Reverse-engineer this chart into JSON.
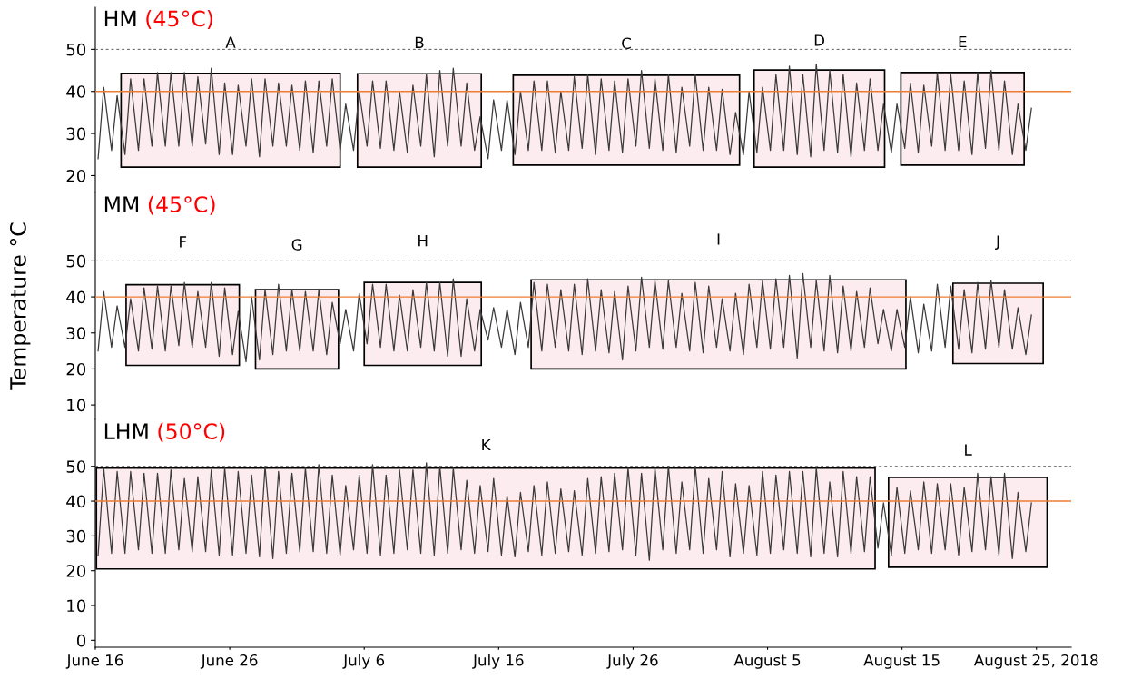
{
  "chart_data": [
    {
      "type": "line",
      "title": "HM",
      "subtitle": "(45°C)",
      "tick_labels": "y",
      "xlim": [
        "2018-06-16T00:00",
        "2018-08-27T14:00"
      ],
      "ylim": [
        16,
        60
      ],
      "yticks": [
        20,
        30,
        40,
        50
      ],
      "x": [
        "2018-06-16T05:00",
        "2018-06-16T15:00",
        "2018-06-17T05:00",
        "2018-06-17T15:00",
        "2018-06-18T05:00",
        "2018-06-18T15:00",
        "2018-06-19T05:00",
        "2018-06-19T15:00",
        "2018-06-20T05:00",
        "2018-06-20T15:00",
        "2018-06-21T05:00",
        "2018-06-21T15:00",
        "2018-06-22T05:00",
        "2018-06-22T15:00",
        "2018-06-23T05:00",
        "2018-06-23T15:00",
        "2018-06-24T05:00",
        "2018-06-24T15:00",
        "2018-06-25T05:00",
        "2018-06-25T15:00",
        "2018-06-26T05:00",
        "2018-06-26T15:00",
        "2018-06-27T05:00",
        "2018-06-27T15:00",
        "2018-06-28T05:00",
        "2018-06-28T15:00",
        "2018-06-29T05:00",
        "2018-06-29T15:00",
        "2018-06-30T05:00",
        "2018-06-30T15:00",
        "2018-07-01T05:00",
        "2018-07-01T15:00",
        "2018-07-02T05:00",
        "2018-07-02T15:00",
        "2018-07-03T05:00",
        "2018-07-03T15:00",
        "2018-07-04T05:00",
        "2018-07-04T15:00",
        "2018-07-05T05:00",
        "2018-07-05T15:00",
        "2018-07-06T05:00",
        "2018-07-06T15:00",
        "2018-07-07T05:00",
        "2018-07-07T15:00",
        "2018-07-08T05:00",
        "2018-07-08T15:00",
        "2018-07-09T05:00",
        "2018-07-09T15:00",
        "2018-07-10T05:00",
        "2018-07-10T15:00",
        "2018-07-11T05:00",
        "2018-07-11T15:00",
        "2018-07-12T05:00",
        "2018-07-12T15:00",
        "2018-07-13T05:00",
        "2018-07-13T15:00",
        "2018-07-14T05:00",
        "2018-07-14T15:00",
        "2018-07-15T05:00",
        "2018-07-15T15:00",
        "2018-07-16T05:00",
        "2018-07-16T15:00",
        "2018-07-17T05:00",
        "2018-07-17T15:00",
        "2018-07-18T05:00",
        "2018-07-18T15:00",
        "2018-07-19T05:00",
        "2018-07-19T15:00",
        "2018-07-20T05:00",
        "2018-07-20T15:00",
        "2018-07-21T05:00",
        "2018-07-21T15:00",
        "2018-07-22T05:00",
        "2018-07-22T15:00",
        "2018-07-23T05:00",
        "2018-07-23T15:00",
        "2018-07-24T05:00",
        "2018-07-24T15:00",
        "2018-07-25T05:00",
        "2018-07-25T15:00",
        "2018-07-26T05:00",
        "2018-07-26T15:00",
        "2018-07-27T05:00",
        "2018-07-27T15:00",
        "2018-07-28T05:00",
        "2018-07-28T15:00",
        "2018-07-29T05:00",
        "2018-07-29T15:00",
        "2018-07-30T05:00",
        "2018-07-30T15:00",
        "2018-07-31T05:00",
        "2018-07-31T15:00",
        "2018-08-01T05:00",
        "2018-08-01T15:00",
        "2018-08-02T05:00",
        "2018-08-02T15:00",
        "2018-08-03T05:00",
        "2018-08-03T15:00",
        "2018-08-04T05:00",
        "2018-08-04T15:00",
        "2018-08-05T05:00",
        "2018-08-05T15:00",
        "2018-08-06T05:00",
        "2018-08-06T15:00",
        "2018-08-07T05:00",
        "2018-08-07T15:00",
        "2018-08-08T05:00",
        "2018-08-08T15:00",
        "2018-08-09T05:00",
        "2018-08-09T15:00",
        "2018-08-10T05:00",
        "2018-08-10T15:00",
        "2018-08-11T05:00",
        "2018-08-11T15:00",
        "2018-08-12T05:00",
        "2018-08-12T15:00",
        "2018-08-13T05:00",
        "2018-08-13T15:00",
        "2018-08-14T05:00",
        "2018-08-14T15:00",
        "2018-08-15T05:00",
        "2018-08-15T15:00",
        "2018-08-16T05:00",
        "2018-08-16T15:00",
        "2018-08-17T05:00",
        "2018-08-17T15:00",
        "2018-08-18T05:00",
        "2018-08-18T15:00",
        "2018-08-19T05:00",
        "2018-08-19T15:00",
        "2018-08-20T05:00",
        "2018-08-20T15:00",
        "2018-08-21T05:00",
        "2018-08-21T15:00",
        "2018-08-22T05:00",
        "2018-08-22T15:00",
        "2018-08-23T05:00",
        "2018-08-23T15:00",
        "2018-08-24T05:00",
        "2018-08-24T15:00"
      ],
      "series": [
        {
          "color": "#3a3a3a",
          "values": [
            24,
            41,
            26,
            39,
            25,
            43,
            26,
            43,
            27,
            44.5,
            27,
            44.5,
            27,
            44.5,
            27,
            43.5,
            27.5,
            45.5,
            25,
            42,
            25,
            41.5,
            27,
            43,
            24.5,
            43,
            27,
            42,
            27,
            41.5,
            26,
            42.5,
            25.5,
            42.5,
            27,
            43,
            26,
            37,
            26,
            40,
            27,
            42.5,
            26.5,
            42.5,
            26,
            40,
            25.5,
            41.5,
            27,
            44,
            24.5,
            45,
            27,
            45.5,
            27,
            42,
            26,
            34,
            24,
            38,
            26,
            38,
            25,
            40,
            26,
            42.5,
            26,
            42.5,
            25.5,
            40,
            26,
            43.5,
            26.5,
            44,
            25,
            43,
            26,
            42.5,
            25.5,
            43,
            27,
            45,
            26.5,
            43,
            26,
            44,
            25.5,
            41,
            27,
            44,
            26,
            41,
            26,
            40.5,
            25,
            35,
            25,
            40,
            25.5,
            41,
            26,
            44,
            26,
            46,
            25,
            44,
            24.5,
            46.5,
            26,
            45,
            25.5,
            44,
            24.5,
            42,
            26,
            43,
            26,
            37,
            25.5,
            37,
            26.5,
            42,
            25.5,
            41.5,
            27,
            44.5,
            26,
            44,
            26,
            42.5,
            25,
            44.5,
            26.5,
            45,
            26,
            42.5,
            25,
            37,
            26,
            36
          ]
        }
      ],
      "bands": [
        {
          "axis": "x",
          "from": "2018-06-17T22:00",
          "to": "2018-07-04T05:00",
          "label": "A",
          "color": "#fdecef"
        },
        {
          "axis": "x",
          "from": "2018-07-05T12:00",
          "to": "2018-07-14T17:00",
          "label": "B",
          "color": "#fdecef"
        },
        {
          "axis": "x",
          "from": "2018-07-17T02:00",
          "to": "2018-08-02T22:00",
          "label": "C",
          "color": "#fdecef"
        },
        {
          "axis": "x",
          "from": "2018-08-04T00:00",
          "to": "2018-08-13T17:00",
          "label": "D",
          "color": "#fdecef"
        },
        {
          "axis": "x",
          "from": "2018-08-14T22:00",
          "to": "2018-08-24T02:00",
          "label": "E",
          "color": "#fdecef"
        }
      ],
      "ref_lines": [
        {
          "axis": "y",
          "value": 50,
          "color": "#555555",
          "line_style": "dashed"
        },
        {
          "axis": "y",
          "value": 40,
          "color": "#ed7d31",
          "line_style": "solid"
        }
      ]
    },
    {
      "type": "line",
      "title": "MM",
      "subtitle": "(45°C)",
      "ylabel": "Temperature °C",
      "tick_labels": "y",
      "xlim": [
        "2018-06-16T00:00",
        "2018-08-27T14:00"
      ],
      "ylim": [
        6,
        69
      ],
      "yticks": [
        10,
        20,
        30,
        40,
        50
      ],
      "x": [
        "2018-06-16T05:00",
        "2018-06-16T15:00",
        "2018-06-17T05:00",
        "2018-06-17T15:00",
        "2018-06-18T05:00",
        "2018-06-18T15:00",
        "2018-06-19T05:00",
        "2018-06-19T15:00",
        "2018-06-20T05:00",
        "2018-06-20T15:00",
        "2018-06-21T05:00",
        "2018-06-21T15:00",
        "2018-06-22T05:00",
        "2018-06-22T15:00",
        "2018-06-23T05:00",
        "2018-06-23T15:00",
        "2018-06-24T05:00",
        "2018-06-24T15:00",
        "2018-06-25T05:00",
        "2018-06-25T15:00",
        "2018-06-26T05:00",
        "2018-06-26T15:00",
        "2018-06-27T05:00",
        "2018-06-27T15:00",
        "2018-06-28T05:00",
        "2018-06-28T15:00",
        "2018-06-29T05:00",
        "2018-06-29T15:00",
        "2018-06-30T05:00",
        "2018-06-30T15:00",
        "2018-07-01T05:00",
        "2018-07-01T15:00",
        "2018-07-02T05:00",
        "2018-07-02T15:00",
        "2018-07-03T05:00",
        "2018-07-03T15:00",
        "2018-07-04T05:00",
        "2018-07-04T15:00",
        "2018-07-05T05:00",
        "2018-07-05T15:00",
        "2018-07-06T05:00",
        "2018-07-06T15:00",
        "2018-07-07T05:00",
        "2018-07-07T15:00",
        "2018-07-08T05:00",
        "2018-07-08T15:00",
        "2018-07-09T05:00",
        "2018-07-09T15:00",
        "2018-07-10T05:00",
        "2018-07-10T15:00",
        "2018-07-11T05:00",
        "2018-07-11T15:00",
        "2018-07-12T05:00",
        "2018-07-12T15:00",
        "2018-07-13T05:00",
        "2018-07-13T15:00",
        "2018-07-14T05:00",
        "2018-07-14T15:00",
        "2018-07-15T05:00",
        "2018-07-15T15:00",
        "2018-07-16T05:00",
        "2018-07-16T15:00",
        "2018-07-17T05:00",
        "2018-07-17T15:00",
        "2018-07-18T05:00",
        "2018-07-18T15:00",
        "2018-07-19T05:00",
        "2018-07-19T15:00",
        "2018-07-20T05:00",
        "2018-07-20T15:00",
        "2018-07-21T05:00",
        "2018-07-21T15:00",
        "2018-07-22T05:00",
        "2018-07-22T15:00",
        "2018-07-23T05:00",
        "2018-07-23T15:00",
        "2018-07-24T05:00",
        "2018-07-24T15:00",
        "2018-07-25T05:00",
        "2018-07-25T15:00",
        "2018-07-26T05:00",
        "2018-07-26T15:00",
        "2018-07-27T05:00",
        "2018-07-27T15:00",
        "2018-07-28T05:00",
        "2018-07-28T15:00",
        "2018-07-29T05:00",
        "2018-07-29T15:00",
        "2018-07-30T05:00",
        "2018-07-30T15:00",
        "2018-07-31T05:00",
        "2018-07-31T15:00",
        "2018-08-01T05:00",
        "2018-08-01T15:00",
        "2018-08-02T05:00",
        "2018-08-02T15:00",
        "2018-08-03T05:00",
        "2018-08-03T15:00",
        "2018-08-04T05:00",
        "2018-08-04T15:00",
        "2018-08-05T05:00",
        "2018-08-05T15:00",
        "2018-08-06T05:00",
        "2018-08-06T15:00",
        "2018-08-07T05:00",
        "2018-08-07T15:00",
        "2018-08-08T05:00",
        "2018-08-08T15:00",
        "2018-08-09T05:00",
        "2018-08-09T15:00",
        "2018-08-10T05:00",
        "2018-08-10T15:00",
        "2018-08-11T05:00",
        "2018-08-11T15:00",
        "2018-08-12T05:00",
        "2018-08-12T15:00",
        "2018-08-13T05:00",
        "2018-08-13T15:00",
        "2018-08-14T05:00",
        "2018-08-14T15:00",
        "2018-08-15T05:00",
        "2018-08-15T15:00",
        "2018-08-16T05:00",
        "2018-08-16T15:00",
        "2018-08-17T05:00",
        "2018-08-17T15:00",
        "2018-08-18T05:00",
        "2018-08-18T15:00",
        "2018-08-19T05:00",
        "2018-08-19T15:00",
        "2018-08-20T05:00",
        "2018-08-20T15:00",
        "2018-08-21T05:00",
        "2018-08-21T15:00",
        "2018-08-22T05:00",
        "2018-08-22T15:00",
        "2018-08-23T05:00",
        "2018-08-23T15:00",
        "2018-08-24T05:00",
        "2018-08-24T15:00"
      ],
      "series": [
        {
          "color": "#3a3a3a",
          "values": [
            25,
            41.5,
            26,
            37.5,
            26,
            39.5,
            25,
            42.5,
            25.5,
            43,
            25,
            43,
            26.5,
            44,
            26,
            41.5,
            26,
            44,
            23.5,
            42.5,
            24,
            36,
            22,
            40,
            22.5,
            42,
            24,
            43.5,
            25,
            42,
            25,
            41.5,
            25,
            42,
            24,
            38.5,
            27,
            36.5,
            25,
            41,
            27,
            43.5,
            26,
            43.5,
            25,
            40.5,
            25,
            42,
            26,
            44,
            25,
            44,
            23.5,
            45,
            23.5,
            39.5,
            25,
            36.5,
            28,
            37,
            26,
            36.5,
            24,
            38.5,
            26,
            44,
            25,
            43.5,
            26,
            42,
            25,
            43.5,
            24,
            45,
            25,
            42,
            24.5,
            41.5,
            22.5,
            43,
            25,
            45.5,
            26,
            44.5,
            25.5,
            44.5,
            26,
            41,
            25,
            44,
            24.5,
            43,
            26,
            39.5,
            25,
            41,
            24,
            43.5,
            26,
            44.5,
            25.5,
            45,
            26,
            46,
            23,
            46.5,
            26,
            44.5,
            25,
            46,
            24.5,
            43,
            25,
            41.5,
            26,
            42.5,
            27,
            36.5,
            25,
            36.5,
            26,
            40,
            24.5,
            38,
            25,
            43.5,
            26,
            43,
            25.5,
            42,
            24.5,
            44,
            25.5,
            44.5,
            26,
            42,
            25.5,
            37,
            24,
            35
          ]
        }
      ],
      "bands": [
        {
          "axis": "x",
          "from": "2018-06-18T07:00",
          "to": "2018-06-26T17:00",
          "label": "F",
          "color": "#fdecef"
        },
        {
          "axis": "x",
          "from": "2018-06-27T22:00",
          "to": "2018-07-04T02:00",
          "label": "G",
          "color": "#fdecef"
        },
        {
          "axis": "x",
          "from": "2018-07-06T00:00",
          "to": "2018-07-14T17:00",
          "label": "H",
          "color": "#fdecef"
        },
        {
          "axis": "x",
          "from": "2018-07-18T10:00",
          "to": "2018-08-15T07:00",
          "label": "I",
          "color": "#fdecef"
        },
        {
          "axis": "x",
          "from": "2018-08-18T19:00",
          "to": "2018-08-25T12:00",
          "label": "J",
          "color": "#fdecef"
        }
      ],
      "ref_lines": [
        {
          "axis": "y",
          "value": 50,
          "color": "#555555",
          "line_style": "dashed"
        },
        {
          "axis": "y",
          "value": 40,
          "color": "#ed7d31",
          "line_style": "solid"
        }
      ]
    },
    {
      "type": "line",
      "title": "LHM",
      "subtitle": "(50°C)",
      "xlim": [
        "2018-06-16T00:00",
        "2018-08-27T14:00"
      ],
      "ylim": [
        -2,
        63.5
      ],
      "yticks": [
        0,
        10,
        20,
        30,
        40,
        50
      ],
      "xticks": [
        {
          "value": "2018-06-16",
          "label": "June 16"
        },
        {
          "value": "2018-06-26",
          "label": "June 26"
        },
        {
          "value": "2018-07-06",
          "label": "July 6"
        },
        {
          "value": "2018-07-16",
          "label": "July 16"
        },
        {
          "value": "2018-07-26",
          "label": "July 26"
        },
        {
          "value": "2018-08-05",
          "label": "August 5"
        },
        {
          "value": "2018-08-15",
          "label": "August 15"
        },
        {
          "value": "2018-08-25",
          "label": "August 25, 2018"
        }
      ],
      "x": [
        "2018-06-16T05:00",
        "2018-06-16T15:00",
        "2018-06-17T05:00",
        "2018-06-17T15:00",
        "2018-06-18T05:00",
        "2018-06-18T15:00",
        "2018-06-19T05:00",
        "2018-06-19T15:00",
        "2018-06-20T05:00",
        "2018-06-20T15:00",
        "2018-06-21T05:00",
        "2018-06-21T15:00",
        "2018-06-22T05:00",
        "2018-06-22T15:00",
        "2018-06-23T05:00",
        "2018-06-23T15:00",
        "2018-06-24T05:00",
        "2018-06-24T15:00",
        "2018-06-25T05:00",
        "2018-06-25T15:00",
        "2018-06-26T05:00",
        "2018-06-26T15:00",
        "2018-06-27T05:00",
        "2018-06-27T15:00",
        "2018-06-28T05:00",
        "2018-06-28T15:00",
        "2018-06-29T05:00",
        "2018-06-29T15:00",
        "2018-06-30T05:00",
        "2018-06-30T15:00",
        "2018-07-01T05:00",
        "2018-07-01T15:00",
        "2018-07-02T05:00",
        "2018-07-02T15:00",
        "2018-07-03T05:00",
        "2018-07-03T15:00",
        "2018-07-04T05:00",
        "2018-07-04T15:00",
        "2018-07-05T05:00",
        "2018-07-05T15:00",
        "2018-07-06T05:00",
        "2018-07-06T15:00",
        "2018-07-07T05:00",
        "2018-07-07T15:00",
        "2018-07-08T05:00",
        "2018-07-08T15:00",
        "2018-07-09T05:00",
        "2018-07-09T15:00",
        "2018-07-10T05:00",
        "2018-07-10T15:00",
        "2018-07-11T05:00",
        "2018-07-11T15:00",
        "2018-07-12T05:00",
        "2018-07-12T15:00",
        "2018-07-13T05:00",
        "2018-07-13T15:00",
        "2018-07-14T05:00",
        "2018-07-14T15:00",
        "2018-07-15T05:00",
        "2018-07-15T15:00",
        "2018-07-16T05:00",
        "2018-07-16T15:00",
        "2018-07-17T05:00",
        "2018-07-17T15:00",
        "2018-07-18T05:00",
        "2018-07-18T15:00",
        "2018-07-19T05:00",
        "2018-07-19T15:00",
        "2018-07-20T05:00",
        "2018-07-20T15:00",
        "2018-07-21T05:00",
        "2018-07-21T15:00",
        "2018-07-22T05:00",
        "2018-07-22T15:00",
        "2018-07-23T05:00",
        "2018-07-23T15:00",
        "2018-07-24T05:00",
        "2018-07-24T15:00",
        "2018-07-25T05:00",
        "2018-07-25T15:00",
        "2018-07-26T05:00",
        "2018-07-26T15:00",
        "2018-07-27T05:00",
        "2018-07-27T15:00",
        "2018-07-28T05:00",
        "2018-07-28T15:00",
        "2018-07-29T05:00",
        "2018-07-29T15:00",
        "2018-07-30T05:00",
        "2018-07-30T15:00",
        "2018-07-31T05:00",
        "2018-07-31T15:00",
        "2018-08-01T05:00",
        "2018-08-01T15:00",
        "2018-08-02T05:00",
        "2018-08-02T15:00",
        "2018-08-03T05:00",
        "2018-08-03T15:00",
        "2018-08-04T05:00",
        "2018-08-04T15:00",
        "2018-08-05T05:00",
        "2018-08-05T15:00",
        "2018-08-06T05:00",
        "2018-08-06T15:00",
        "2018-08-07T05:00",
        "2018-08-07T15:00",
        "2018-08-08T05:00",
        "2018-08-08T15:00",
        "2018-08-09T05:00",
        "2018-08-09T15:00",
        "2018-08-10T05:00",
        "2018-08-10T15:00",
        "2018-08-11T05:00",
        "2018-08-11T15:00",
        "2018-08-12T05:00",
        "2018-08-12T15:00",
        "2018-08-13T05:00",
        "2018-08-13T15:00",
        "2018-08-14T05:00",
        "2018-08-14T15:00",
        "2018-08-15T05:00",
        "2018-08-15T15:00",
        "2018-08-16T05:00",
        "2018-08-16T15:00",
        "2018-08-17T05:00",
        "2018-08-17T15:00",
        "2018-08-18T05:00",
        "2018-08-18T15:00",
        "2018-08-19T05:00",
        "2018-08-19T15:00",
        "2018-08-20T05:00",
        "2018-08-20T15:00",
        "2018-08-21T05:00",
        "2018-08-21T15:00",
        "2018-08-22T05:00",
        "2018-08-22T15:00",
        "2018-08-23T05:00",
        "2018-08-23T15:00",
        "2018-08-24T05:00",
        "2018-08-24T15:00"
      ],
      "series": [
        {
          "color": "#3a3a3a",
          "values": [
            24.5,
            49.5,
            25,
            48.5,
            25,
            48.5,
            26,
            48,
            25,
            48,
            25,
            49,
            26,
            46.5,
            25.5,
            47,
            25.5,
            49,
            24.5,
            49.5,
            24.5,
            48.5,
            25,
            47.5,
            24,
            50,
            23.5,
            48.5,
            25,
            48,
            25.5,
            49.5,
            25.5,
            50.5,
            25,
            47.5,
            24.5,
            44.5,
            26,
            47.5,
            25,
            50.5,
            24.5,
            47.5,
            25,
            49,
            26,
            49,
            25,
            51,
            24.5,
            50,
            25,
            49.5,
            26,
            46,
            25,
            44.5,
            25.5,
            46.5,
            24.5,
            41.5,
            24,
            42.5,
            25.5,
            44.5,
            24.5,
            45.5,
            25,
            43.5,
            25.5,
            43,
            24.5,
            46.5,
            25,
            47,
            25.5,
            48,
            26,
            49.5,
            24.5,
            48,
            23,
            49.5,
            26,
            50,
            25,
            45.5,
            26,
            50,
            25,
            46.5,
            26,
            48.5,
            24,
            45,
            25,
            44.5,
            24.5,
            48.5,
            25,
            47.5,
            26,
            48.5,
            25,
            48.5,
            24,
            49.5,
            25,
            45.5,
            24,
            48.5,
            25,
            47,
            25.5,
            47,
            26.5,
            39.5,
            24.5,
            44,
            25,
            43,
            26,
            45.5,
            25,
            45,
            26,
            45,
            24.5,
            44,
            25.5,
            48,
            26,
            47,
            24.5,
            48,
            23.5,
            42.5,
            25.5,
            39.5
          ]
        }
      ],
      "bands": [
        {
          "axis": "x",
          "from": "2018-06-16T02:00",
          "to": "2018-08-13T00:00",
          "label": "K",
          "color": "#fdecef"
        },
        {
          "axis": "x",
          "from": "2018-08-14T00:00",
          "to": "2018-08-25T19:00",
          "label": "L",
          "color": "#fdecef"
        }
      ],
      "ref_lines": [
        {
          "axis": "y",
          "value": 50,
          "color": "#555555",
          "line_style": "dashed"
        },
        {
          "axis": "y",
          "value": 40,
          "color": "#ed7d31",
          "line_style": "solid"
        }
      ]
    }
  ]
}
